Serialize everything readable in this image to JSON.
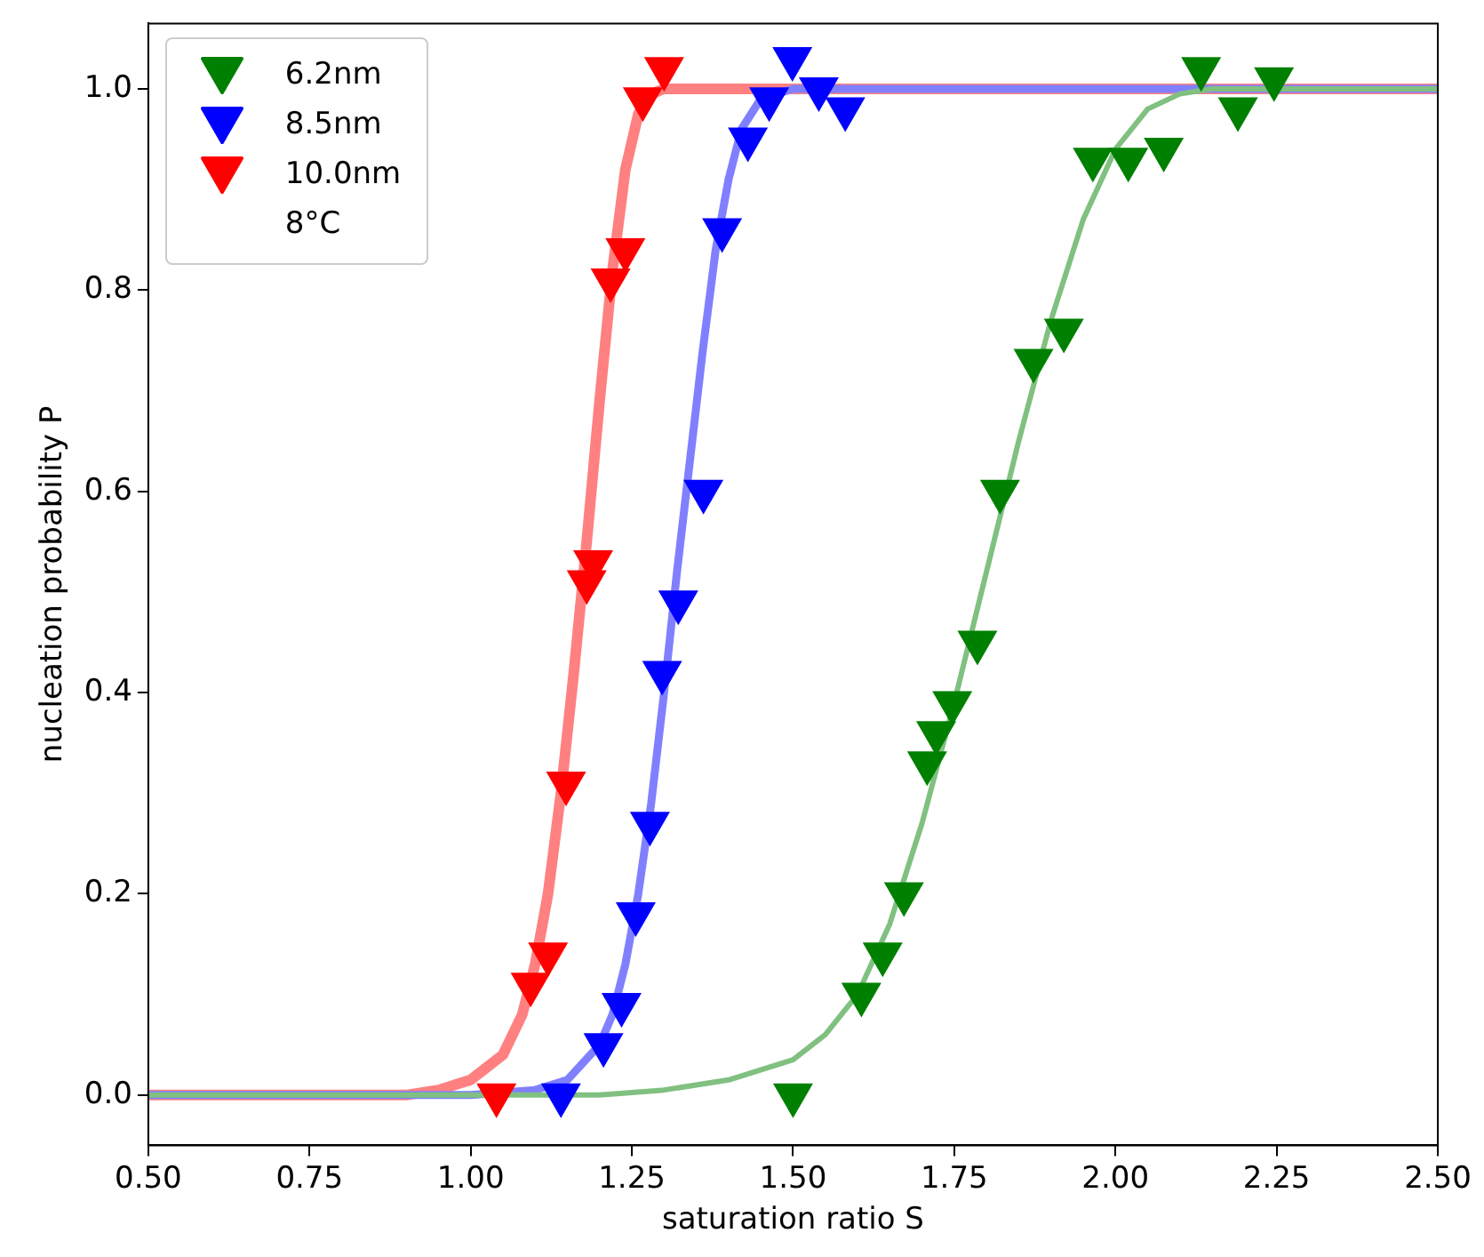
{
  "chart_data": {
    "type": "scatter",
    "xlabel": "saturation ratio S",
    "ylabel": "nucleation probability P",
    "xlim": [
      0.5,
      2.5
    ],
    "ylim": [
      -0.05,
      1.065
    ],
    "xticks": [
      {
        "value": 0.5,
        "label": "0.50"
      },
      {
        "value": 0.75,
        "label": "0.75"
      },
      {
        "value": 1,
        "label": "1.00"
      },
      {
        "value": 1.25,
        "label": "1.25"
      },
      {
        "value": 1.5,
        "label": "1.50"
      },
      {
        "value": 1.75,
        "label": "1.75"
      },
      {
        "value": 2,
        "label": "2.00"
      },
      {
        "value": 2.25,
        "label": "2.25"
      },
      {
        "value": 2.5,
        "label": "2.50"
      }
    ],
    "yticks": [
      {
        "value": 0,
        "label": "0.0"
      },
      {
        "value": 0.2,
        "label": "0.2"
      },
      {
        "value": 0.4,
        "label": "0.4"
      },
      {
        "value": 0.6,
        "label": "0.6"
      },
      {
        "value": 0.8,
        "label": "0.8"
      },
      {
        "value": 1,
        "label": "1.0"
      }
    ],
    "grid": false,
    "legend": "top left",
    "marker": "triangle",
    "annotations": [
      "8°C"
    ],
    "series": [
      {
        "type": "line",
        "marker": "none",
        "color": "#80c080",
        "x": [
          0.5,
          1.2,
          1.3,
          1.4,
          1.5,
          1.55,
          1.6,
          1.65,
          1.7,
          1.75,
          1.8,
          1.85,
          1.9,
          1.95,
          2.0,
          2.05,
          2.1,
          2.15,
          2.5
        ],
        "values": [
          0,
          0,
          0.005,
          0.015,
          0.035,
          0.06,
          0.1,
          0.17,
          0.27,
          0.39,
          0.52,
          0.65,
          0.77,
          0.87,
          0.94,
          0.98,
          0.995,
          1,
          1
        ]
      },
      {
        "type": "line",
        "marker": "none",
        "color": "#8080ff",
        "x": [
          0.5,
          1.0,
          1.1,
          1.15,
          1.2,
          1.22,
          1.24,
          1.26,
          1.28,
          1.3,
          1.32,
          1.34,
          1.36,
          1.38,
          1.4,
          1.42,
          1.45,
          1.5,
          2.5
        ],
        "values": [
          0,
          0,
          0.005,
          0.015,
          0.05,
          0.08,
          0.13,
          0.2,
          0.29,
          0.4,
          0.52,
          0.63,
          0.74,
          0.84,
          0.91,
          0.96,
          0.99,
          1,
          1
        ]
      },
      {
        "type": "line",
        "marker": "none",
        "color": "#ff8080",
        "x": [
          0.5,
          0.9,
          0.95,
          1.0,
          1.05,
          1.08,
          1.1,
          1.12,
          1.14,
          1.16,
          1.18,
          1.2,
          1.22,
          1.24,
          1.26,
          1.28,
          1.3,
          2.5
        ],
        "values": [
          0,
          0,
          0.005,
          0.015,
          0.04,
          0.08,
          0.13,
          0.2,
          0.3,
          0.42,
          0.55,
          0.69,
          0.82,
          0.92,
          0.975,
          0.995,
          1,
          1
        ]
      },
      {
        "name": "6.2nm",
        "color": "#008000",
        "x": [
          1.5,
          1.606,
          1.639,
          1.672,
          1.708,
          1.722,
          1.747,
          1.786,
          1.821,
          1.873,
          1.92,
          1.965,
          2.02,
          2.075,
          2.133,
          2.19,
          2.246
        ],
        "values": [
          0,
          0.1,
          0.14,
          0.2,
          0.33,
          0.36,
          0.39,
          0.45,
          0.6,
          0.73,
          0.76,
          0.93,
          0.93,
          0.94,
          1.02,
          0.98,
          1.01
        ]
      },
      {
        "name": "8.5nm",
        "color": "#0000ff",
        "x": [
          1.14,
          1.206,
          1.234,
          1.256,
          1.278,
          1.297,
          1.322,
          1.361,
          1.39,
          1.43,
          1.463,
          1.499,
          1.54,
          1.581
        ],
        "values": [
          0,
          0.05,
          0.09,
          0.18,
          0.27,
          0.42,
          0.49,
          0.6,
          0.86,
          0.95,
          0.99,
          1.03,
          1.0,
          0.98
        ]
      },
      {
        "name": "10.0nm",
        "color": "#ff0000",
        "x": [
          1.04,
          1.093,
          1.12,
          1.148,
          1.18,
          1.19,
          1.217,
          1.24,
          1.267,
          1.3
        ],
        "values": [
          0,
          0.11,
          0.14,
          0.31,
          0.51,
          0.53,
          0.81,
          0.84,
          0.99,
          1.02
        ]
      }
    ]
  }
}
